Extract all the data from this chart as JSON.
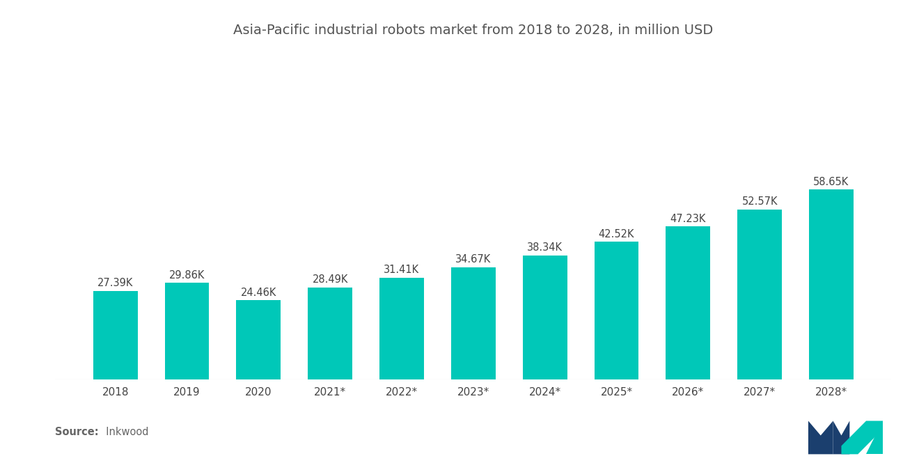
{
  "title": "Asia-Pacific industrial robots market from 2018 to 2028, in million USD",
  "categories": [
    "2018",
    "2019",
    "2020",
    "2021*",
    "2022*",
    "2023*",
    "2024*",
    "2025*",
    "2026*",
    "2027*",
    "2028*"
  ],
  "values": [
    27390,
    29860,
    24460,
    28490,
    31410,
    34670,
    38340,
    42520,
    47230,
    52570,
    58650
  ],
  "labels": [
    "27.39K",
    "29.86K",
    "24.46K",
    "28.49K",
    "31.41K",
    "34.67K",
    "38.34K",
    "42.52K",
    "47.23K",
    "52.57K",
    "58.65K"
  ],
  "bar_color": "#00C8B8",
  "background_color": "#FFFFFF",
  "title_fontsize": 14,
  "label_fontsize": 10.5,
  "tick_fontsize": 11,
  "source_bold": "Source:",
  "source_normal": "  Inkwood",
  "ylim": [
    0,
    100000
  ],
  "source_color": "#666666",
  "tick_color": "#444444"
}
